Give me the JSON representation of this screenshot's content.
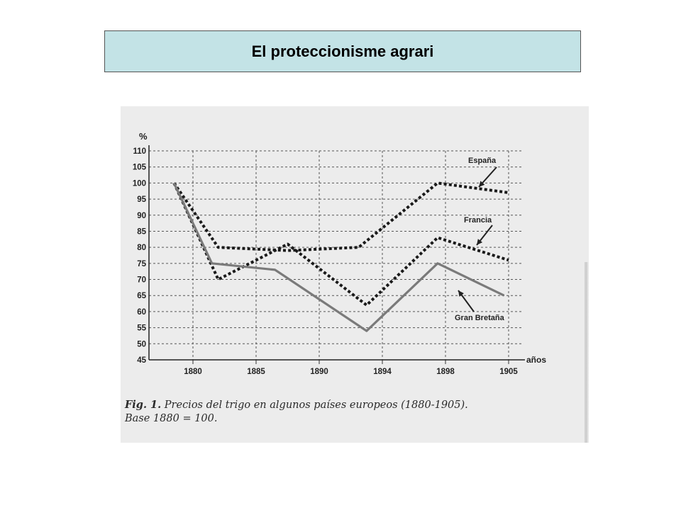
{
  "page": {
    "title": "El proteccionisme agrari",
    "caption_fig": "Fig. 1.",
    "caption_text": "Precios del trigo en algunos países europeos (1880-1905).",
    "caption_base": "Base 1880 = 100."
  },
  "colors": {
    "title_bg": "#c3e3e6",
    "spain": "#1a1a1a",
    "france": "#1a1a1a",
    "britain": "#7a7a7a",
    "grid": "#555555",
    "scan_bg": "#ececec"
  },
  "chart_data": {
    "type": "line",
    "title": "",
    "xlabel": "años",
    "ylabel": "%",
    "ylim": [
      45,
      110
    ],
    "yticks": [
      110,
      105,
      100,
      95,
      90,
      85,
      80,
      75,
      70,
      65,
      60,
      55,
      50,
      45
    ],
    "xticks": [
      "1880",
      "1885",
      "1890",
      "1894",
      "1898",
      "1905"
    ],
    "grid": true,
    "series": [
      {
        "name": "España",
        "style": "dotted",
        "x": [
          1878.5,
          1882.0,
          1887.5,
          1892.5,
          1897.5,
          1905.0
        ],
        "y": [
          100,
          80,
          79,
          80,
          100,
          97
        ]
      },
      {
        "name": "Francia",
        "style": "dotted",
        "x": [
          1878.5,
          1882.0,
          1887.5,
          1893.0,
          1897.5,
          1905.0
        ],
        "y": [
          100,
          70,
          81,
          62,
          83,
          76
        ]
      },
      {
        "name": "Gran Bretaña",
        "style": "solid",
        "x": [
          1878.5,
          1881.5,
          1886.5,
          1893.0,
          1897.5,
          1904.5
        ],
        "y": [
          100,
          75,
          73,
          54,
          75,
          65
        ]
      }
    ]
  }
}
